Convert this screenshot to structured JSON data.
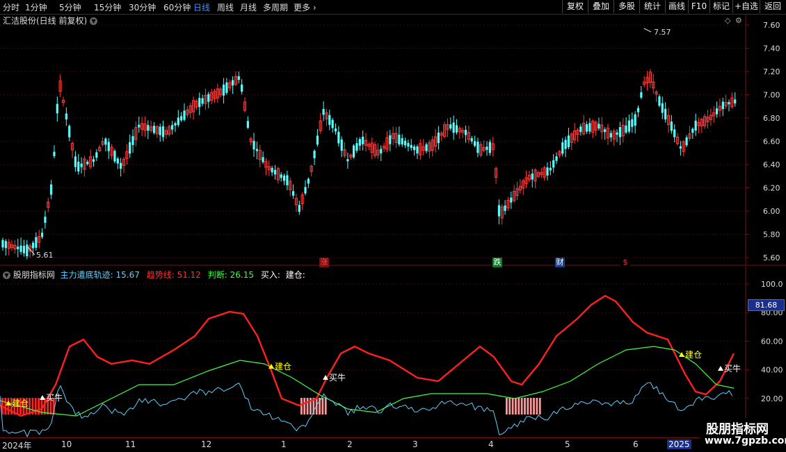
{
  "toolbar": {
    "timeframes": [
      "分时",
      "1分钟",
      "5分钟",
      "15分钟",
      "30分钟",
      "60分钟",
      "日线",
      "周线",
      "月线",
      "多周期",
      "更多"
    ],
    "active": "日线",
    "right_buttons": [
      "复权",
      "叠加",
      "多股",
      "统计",
      "画线",
      "F10",
      "标记",
      "+自选",
      "返回"
    ]
  },
  "stock": {
    "title": "汇洁股份(日线 前复权)"
  },
  "main_chart": {
    "y_ticks": [
      "7.60",
      "7.40",
      "7.20",
      "7.00",
      "6.80",
      "6.60",
      "6.40",
      "6.20",
      "6.00",
      "5.80",
      "5.60"
    ],
    "high_label": "7.57",
    "low_label": "5.61",
    "markers": [
      {
        "text": "涨",
        "color": "#ff4444",
        "bg": "#7a1111"
      },
      {
        "text": "跌",
        "color": "#ffffff",
        "bg": "#0c7a25"
      },
      {
        "text": "财",
        "color": "#ffffff",
        "bg": "#163f8a"
      },
      {
        "text": "$",
        "color": "#ff3333",
        "bg": "#000000"
      }
    ],
    "colors": {
      "up": "#ff3c3c",
      "down": "#54ffff"
    }
  },
  "indicator": {
    "name": "股朋指标网",
    "series_labels": [
      {
        "text": "主力遣底轨迹: 15.67",
        "color": "#5fd0ff"
      },
      {
        "text": "趋势线: 51.12",
        "color": "#ff3030"
      },
      {
        "text": "判断: 26.15",
        "color": "#40ff40"
      },
      {
        "text": "买入:",
        "color": "#ffffff"
      },
      {
        "text": "建仓:",
        "color": "#ffffff"
      }
    ],
    "y_ticks": [
      "100.0",
      "80.00",
      "60.00",
      "40.00",
      "20.00"
    ],
    "current_value": "81.68",
    "signals": [
      {
        "text": "建仓",
        "color": "#ffff00"
      },
      {
        "text": "买牛",
        "color": "#ffffff"
      },
      {
        "text": "建仓",
        "color": "#ffff00"
      },
      {
        "text": "买牛",
        "color": "#ffffff"
      },
      {
        "text": "建仓",
        "color": "#ffff00"
      },
      {
        "text": "买牛",
        "color": "#ffffff"
      }
    ]
  },
  "xaxis": {
    "labels": [
      "2024年",
      "10",
      "11",
      "12",
      "1",
      "2",
      "3",
      "4",
      "5",
      "6",
      "2025"
    ]
  },
  "watermark": {
    "line1": "股朋指标网",
    "line2": "www.7gpzb.com"
  }
}
